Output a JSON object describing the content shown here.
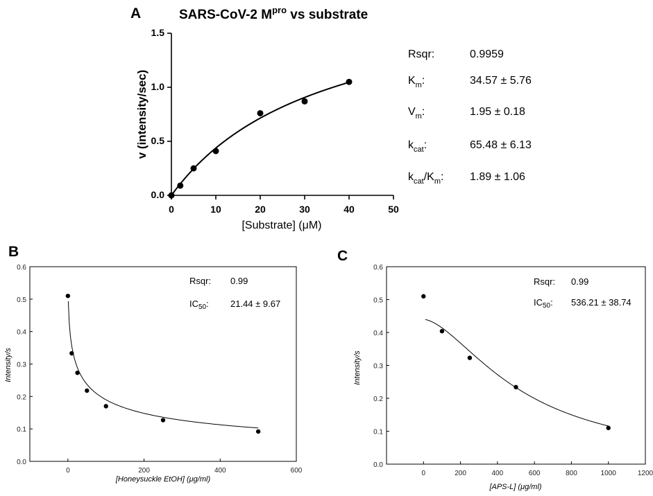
{
  "chart_data": [
    {
      "panel": "A",
      "type": "scatter",
      "title_main": "SARS-CoV-2 M",
      "title_sup": "pro",
      "title_rest": " vs substrate",
      "xlabel": "[Substrate] (μM)",
      "ylabel": "v (intensity/sec)",
      "xlim": [
        0,
        50
      ],
      "ylim": [
        0,
        1.5
      ],
      "xticks": [
        "0",
        "10",
        "20",
        "30",
        "40",
        "50"
      ],
      "yticks": [
        "0.0",
        "0.5",
        "1.0",
        "1.5"
      ],
      "x": [
        0,
        2,
        5,
        10,
        20,
        30,
        40
      ],
      "y": [
        0.0,
        0.09,
        0.25,
        0.41,
        0.76,
        0.87,
        1.05
      ],
      "fit": {
        "model": "michaelis-menten",
        "vmax": 1.95,
        "km": 34.57
      },
      "stats": [
        {
          "label": "Rsqr:",
          "value": "0.9959"
        },
        {
          "label_main": "K",
          "label_sub": "m",
          "label_tail": ":",
          "value": "34.57 ± 5.76"
        },
        {
          "label_main": "V",
          "label_sub": "m",
          "label_tail": ":",
          "value": "1.95 ± 0.18"
        },
        {
          "label_main": "k",
          "label_sub": "cat",
          "label_tail": ":",
          "value": "65.48 ± 6.13"
        },
        {
          "label_main": "k",
          "label_sub": "cat",
          "label_mid": "/K",
          "label_sub2": "m",
          "label_tail": ":",
          "value": "1.89 ± 1.06"
        }
      ]
    },
    {
      "panel": "B",
      "type": "scatter",
      "xlabel": "[Honeysuckle EtOH] (μg/ml)",
      "ylabel": "Intensity/s",
      "xlim": [
        -100,
        600
      ],
      "ylim": [
        0,
        0.6
      ],
      "xticks": [
        0,
        200,
        400,
        600
      ],
      "yticks": [
        "0.0",
        "0.1",
        "0.2",
        "0.3",
        "0.4",
        "0.5",
        "0.6"
      ],
      "x": [
        0,
        10,
        25,
        50,
        100,
        250,
        500
      ],
      "y": [
        0.51,
        0.333,
        0.273,
        0.218,
        0.17,
        0.127,
        0.092
      ],
      "fit": {
        "model": "ic50",
        "top": 0.6,
        "bottom": 0.0,
        "ic50": 21.44,
        "hill": 0.5,
        "x_from": 1
      },
      "stats": [
        {
          "label": "Rsqr:",
          "value": "0.99"
        },
        {
          "label_main": "IC",
          "label_sub": "50",
          "label_tail": ":",
          "value": "21.44 ± 9.67"
        }
      ]
    },
    {
      "panel": "C",
      "type": "scatter",
      "xlabel": "[APS-L] (μg/ml)",
      "ylabel": "Intensity/s",
      "xlim": [
        -200,
        1200
      ],
      "ylim": [
        0,
        0.6
      ],
      "xticks": [
        0,
        200,
        400,
        600,
        800,
        1000,
        1200
      ],
      "yticks": [
        "0.0",
        "0.1",
        "0.2",
        "0.3",
        "0.4",
        "0.5",
        "0.6"
      ],
      "x": [
        0,
        100,
        250,
        500,
        1000
      ],
      "y": [
        0.51,
        0.404,
        0.323,
        0.234,
        0.11
      ],
      "fit": {
        "model": "ic50",
        "top": 0.44,
        "bottom": 0.0,
        "ic50": 536.21,
        "hill": 1.65,
        "x_from": 10
      },
      "stats": [
        {
          "label": "Rsqr:",
          "value": "0.99"
        },
        {
          "label_main": "IC",
          "label_sub": "50",
          "label_tail": ":",
          "value": "536.21 ± 38.74"
        }
      ]
    }
  ]
}
